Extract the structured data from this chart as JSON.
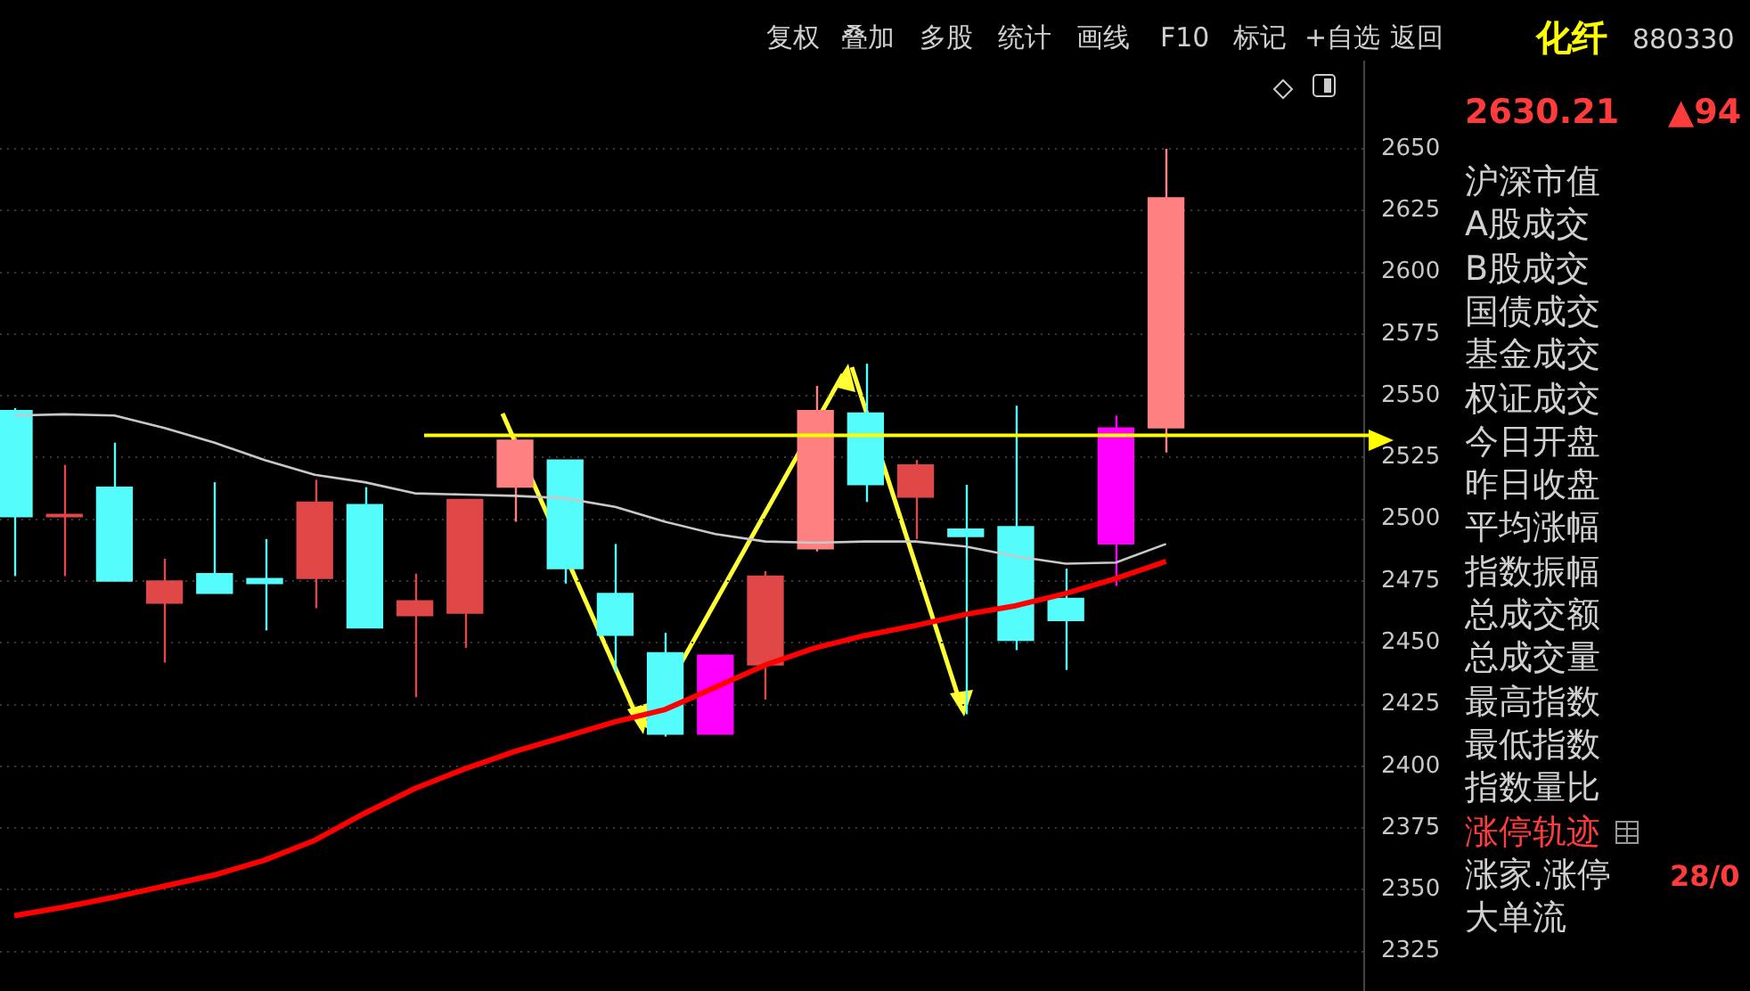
{
  "chart_data": {
    "type": "candlestick",
    "title": "化纤",
    "subtitle": "880330",
    "categories": [
      null,
      null,
      null,
      null,
      null,
      null,
      null,
      null,
      null,
      null,
      null,
      null,
      null,
      null,
      null,
      null,
      null,
      null,
      null,
      null,
      null,
      null,
      null,
      null
    ],
    "ohlc": [
      [
        2544,
        2545,
        2477,
        2501
      ],
      [
        2501,
        2522,
        2477,
        2502
      ],
      [
        2513,
        2531,
        2475,
        2475
      ],
      [
        2466,
        2484,
        2442,
        2475
      ],
      [
        2478,
        2515,
        2470,
        2470
      ],
      [
        2476,
        2492,
        2455,
        2474
      ],
      [
        2476,
        2516,
        2464,
        2507
      ],
      [
        2506,
        2513,
        2456,
        2456
      ],
      [
        2461,
        2478,
        2428,
        2467
      ],
      [
        2462,
        2508,
        2448,
        2508
      ],
      [
        2513,
        2533,
        2499,
        2532
      ],
      [
        2524,
        2524,
        2474,
        2480
      ],
      [
        2470,
        2490,
        2438,
        2453
      ],
      [
        2446,
        2454,
        2412,
        2413
      ],
      [
        2413,
        2445,
        2413,
        2445
      ],
      [
        2441,
        2479,
        2427,
        2477
      ],
      [
        2488,
        2554,
        2487,
        2544
      ],
      [
        2543,
        2563,
        2507,
        2514
      ],
      [
        2509,
        2524,
        2492,
        2522
      ],
      [
        2496,
        2514,
        2421,
        2493
      ],
      [
        2497,
        2546,
        2447,
        2451
      ],
      [
        2468,
        2480,
        2439,
        2459
      ],
      [
        2490,
        2542,
        2473,
        2537
      ],
      [
        2537,
        2650,
        2527,
        2630.21
      ]
    ],
    "colors": [
      "#54fcfc",
      "#e04848",
      "#54fcfc",
      "#e04848",
      "#54fcfc",
      "#54fcfc",
      "#e04848",
      "#54fcfc",
      "#e04848",
      "#e04848",
      "#ff8080",
      "#54fcfc",
      "#54fcfc",
      "#54fcfc",
      "#ff00ff",
      "#e04848",
      "#ff8080",
      "#54fcfc",
      "#e04848",
      "#54fcfc",
      "#54fcfc",
      "#54fcfc",
      "#ff00ff",
      "#ff8080"
    ],
    "series": [
      {
        "type": "line",
        "color": "#c8c8c8",
        "values": [
          2542,
          2542.5,
          2542,
          2537,
          2531,
          2524,
          2518,
          2515,
          2510.5,
          2510,
          2509.5,
          2508.5,
          2505,
          2499,
          2494,
          2491,
          2490.5,
          2491,
          2491,
          2489,
          2485,
          2482,
          2482.5,
          2490
        ]
      },
      {
        "type": "line",
        "color": "#ff0000",
        "values": [
          2339.5,
          2343,
          2347,
          2351.5,
          2356,
          2362,
          2370,
          2381,
          2391,
          2399,
          2406,
          2412,
          2418,
          2423,
          2432,
          2441,
          2448,
          2453,
          2457,
          2461.5,
          2465,
          2470,
          2476,
          2483
        ]
      }
    ],
    "ylim": [
      2309,
      2685
    ],
    "yticks": [
      2325,
      2350,
      2375,
      2400,
      2425,
      2450,
      2475,
      2500,
      2525,
      2550,
      2575,
      2600,
      2625,
      2650
    ],
    "grid": "y",
    "tick_labels": "y",
    "marker": "none",
    "ref_lines": [
      {
        "axis": "y",
        "value": 2534,
        "color": "#ffff00"
      }
    ],
    "annotations": [
      "复权",
      "叠加",
      "多股",
      "统计",
      "画线",
      "F10",
      "标记",
      "+自选",
      "返回",
      "2630.21",
      "▲94",
      "沪深市值",
      "A股成交",
      "B股成交",
      "国债成交",
      "基金成交",
      "权证成交",
      "今日开盘",
      "昨日收盘",
      "平均涨幅",
      "指数振幅",
      "总成交额",
      "总成交量",
      "最高指数",
      "最低指数",
      "指数量比",
      "涨停轨迹",
      "涨家.涨停",
      "大单流",
      "28/0"
    ]
  }
}
